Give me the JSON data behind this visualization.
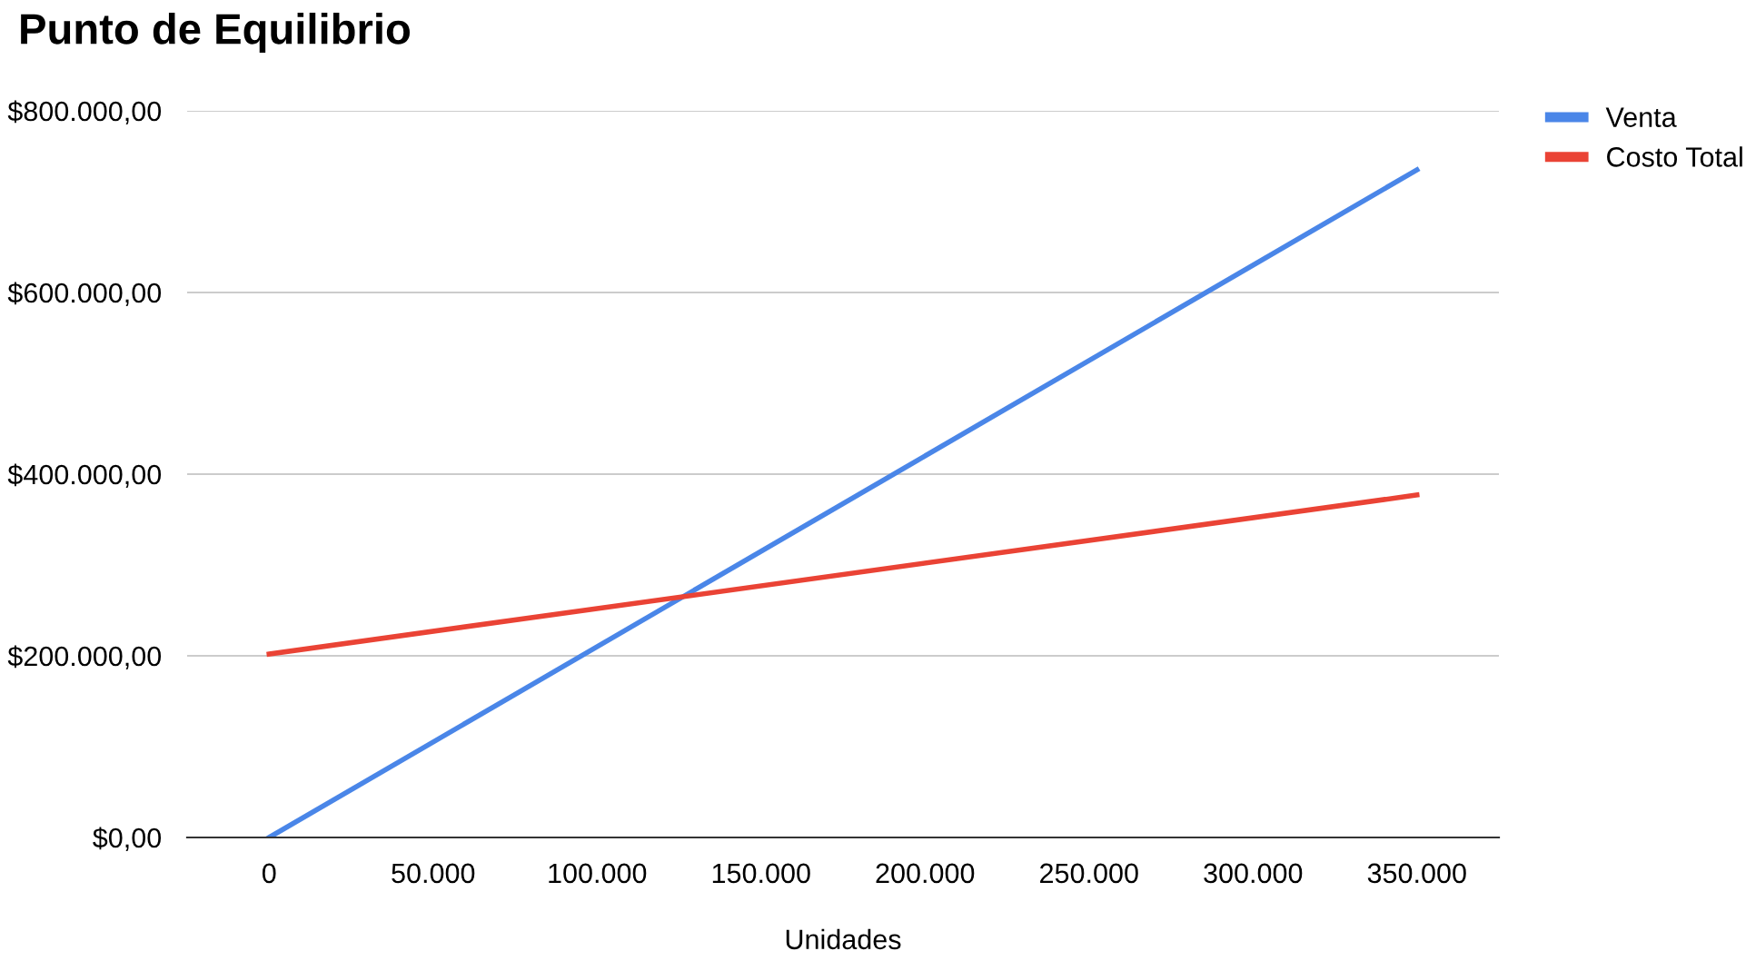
{
  "chart_data": {
    "type": "line",
    "title": "Punto de Equilibrio",
    "xlabel": "Unidades",
    "x": [
      0,
      350000
    ],
    "series": [
      {
        "name": "Venta",
        "color": "#4a86e8",
        "values": [
          0,
          735000
        ]
      },
      {
        "name": "Costo Total",
        "color": "#ea4335",
        "values": [
          202000,
          377000
        ]
      }
    ],
    "xlim": [
      -25000,
      375000
    ],
    "xticks": [
      {
        "value": 0,
        "label": "0"
      },
      {
        "value": 50000,
        "label": "50.000"
      },
      {
        "value": 100000,
        "label": "100.000"
      },
      {
        "value": 150000,
        "label": "150.000"
      },
      {
        "value": 200000,
        "label": "200.000"
      },
      {
        "value": 250000,
        "label": "250.000"
      },
      {
        "value": 300000,
        "label": "300.000"
      },
      {
        "value": 350000,
        "label": "350.000"
      }
    ],
    "ylim": [
      0,
      800000
    ],
    "yticks": [
      {
        "value": 0,
        "label": "$0,00"
      },
      {
        "value": 200000,
        "label": "$200.000,00"
      },
      {
        "value": 400000,
        "label": "$400.000,00"
      },
      {
        "value": 600000,
        "label": "$600.000,00"
      },
      {
        "value": 800000,
        "label": "$800.000,00"
      }
    ],
    "grid": "y",
    "legend": "top right",
    "marker": "none",
    "line_style": "solid"
  }
}
